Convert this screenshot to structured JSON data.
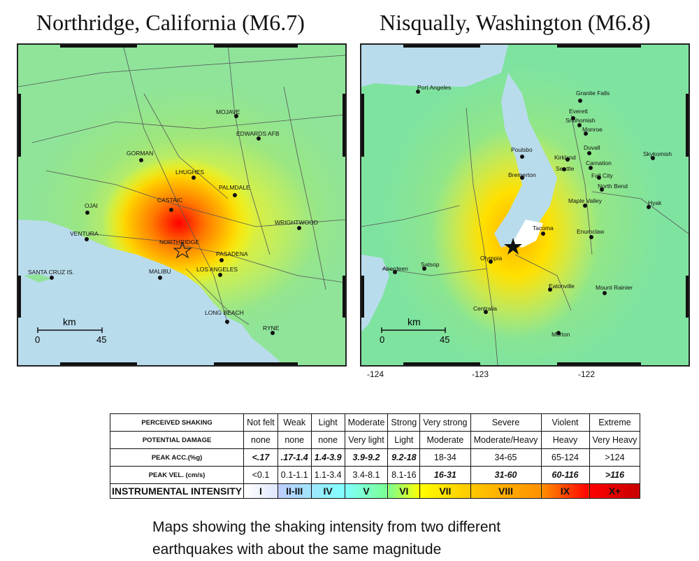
{
  "maps": [
    {
      "title": "Northridge, California (M6.7)",
      "scale": {
        "unit": "km",
        "start": "0",
        "end": "45"
      },
      "places": [
        "MOJAVE",
        "EDWARDS AFB",
        "GORMAN",
        "LHUGHES",
        "PALMDALE",
        "CASTAIC",
        "OJAI",
        "VENTURA",
        "WRIGHTWOOD",
        "NORTHRIDGE",
        "PASADENA",
        "SANTA CRUZ IS.",
        "MALIBU",
        "LOS ANGELES",
        "LONG BEACH",
        "RYNE"
      ]
    },
    {
      "title": "Nisqually, Washington (M6.8)",
      "scale": {
        "unit": "km",
        "start": "0",
        "end": "45"
      },
      "longitude_ticks": [
        "-124",
        "-123",
        "-122"
      ],
      "places": [
        "Port Angeles",
        "Granite Falls",
        "Everett",
        "Snohomish",
        "Monroe",
        "Poulsbo",
        "Kirkland",
        "Duvall",
        "Skykomish",
        "Bremerton",
        "Seattle",
        "Carnation",
        "Fall City",
        "North Bend",
        "Maple Valley",
        "Hyak",
        "Enumclaw",
        "Tacoma",
        "Olympia",
        "Satsop",
        "Aberdeen",
        "Eatonville",
        "Mount Rainier",
        "Centralia",
        "Morton"
      ]
    }
  ],
  "legend": {
    "row_headers": [
      "PERCEIVED SHAKING",
      "POTENTIAL DAMAGE",
      "PEAK ACC.(%g)",
      "PEAK VEL. (cm/s)",
      "INSTRUMENTAL INTENSITY"
    ],
    "perceived_shaking": [
      "Not felt",
      "Weak",
      "Light",
      "Moderate",
      "Strong",
      "Very strong",
      "Severe",
      "Violent",
      "Extreme"
    ],
    "potential_damage": [
      "none",
      "none",
      "none",
      "Very light",
      "Light",
      "Moderate",
      "Moderate/Heavy",
      "Heavy",
      "Very Heavy"
    ],
    "peak_acc": [
      "<.17",
      ".17-1.4",
      "1.4-3.9",
      "3.9-9.2",
      "9.2-18",
      "18-34",
      "34-65",
      "65-124",
      ">124"
    ],
    "peak_vel": [
      "<0.1",
      "0.1-1.1",
      "1.1-3.4",
      "3.4-8.1",
      "8.1-16",
      "16-31",
      "31-60",
      "60-116",
      ">116"
    ],
    "intensity": [
      "I",
      "II-III",
      "IV",
      "V",
      "VI",
      "VII",
      "VIII",
      "IX",
      "X+"
    ],
    "intensity_colors": [
      "#ffffff",
      "#bfccff",
      "#a0e6ff",
      "#80ffff",
      "#7aff93",
      "#ffff00",
      "#ffc800",
      "#ff9100",
      "#ff0000",
      "#c80000"
    ]
  },
  "caption": {
    "line1": "Maps showing the shaking intensity from two different",
    "line2": "earthquakes with about the same magnitude"
  }
}
